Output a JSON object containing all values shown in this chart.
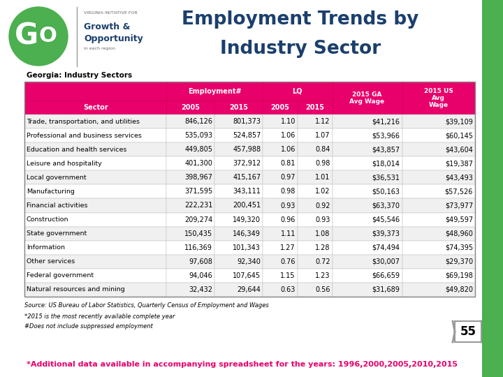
{
  "title_line1": "Employment Trends by",
  "title_line2": "Industry Sector",
  "subtitle": "Georgia: Industry Sectors",
  "rows": [
    [
      "Trade, transportation, and utilities",
      "846,126",
      "801,373",
      "1.10",
      "1.12",
      "$41,216",
      "$39,109"
    ],
    [
      "Professional and business services",
      "535,093",
      "524,857",
      "1.06",
      "1.07",
      "$53,966",
      "$60,145"
    ],
    [
      "Education and health services",
      "449,805",
      "457,988",
      "1.06",
      "0.84",
      "$43,857",
      "$43,604"
    ],
    [
      "Leisure and hospitality",
      "401,300",
      "372,912",
      "0.81",
      "0.98",
      "$18,014",
      "$19,387"
    ],
    [
      "Local government",
      "398,967",
      "415,167",
      "0.97",
      "1.01",
      "$36,531",
      "$43,493"
    ],
    [
      "Manufacturing",
      "371,595",
      "343,111",
      "0.98",
      "1.02",
      "$50,163",
      "$57,526"
    ],
    [
      "Financial activities",
      "222,231",
      "200,451",
      "0.93",
      "0.92",
      "$63,370",
      "$73,977"
    ],
    [
      "Construction",
      "209,274",
      "149,320",
      "0.96",
      "0.93",
      "$45,546",
      "$49,597"
    ],
    [
      "State government",
      "150,435",
      "146,349",
      "1.11",
      "1.08",
      "$39,373",
      "$48,960"
    ],
    [
      "Information",
      "116,369",
      "101,343",
      "1.27",
      "1.28",
      "$74,494",
      "$74,395"
    ],
    [
      "Other services",
      "97,608",
      "92,340",
      "0.76",
      "0.72",
      "$30,007",
      "$29,370"
    ],
    [
      "Federal government",
      "94,046",
      "107,645",
      "1.15",
      "1.23",
      "$66,659",
      "$69,198"
    ],
    [
      "Natural resources and mining",
      "32,432",
      "29,644",
      "0.63",
      "0.56",
      "$31,689",
      "$49,820"
    ]
  ],
  "source_text": "Source: US Bureau of Labor Statistics, Quarterly Census of Employment and Wages",
  "footnote1": "*2015 is the most recently available complete year",
  "footnote2": "#Does not include suppressed employment",
  "bottom_text": "*Additional data available in accompanying spreadsheet for the years: 1996,2000,2005,2010,2015",
  "page_number": "55",
  "header_bg": "#E8006B",
  "header_fg": "#FFFFFF",
  "alt_row": "#F0F0F0",
  "white_row": "#FFFFFF",
  "border_col": "#BBBBBB",
  "title_color": "#1B3F6E",
  "green_color": "#4CAF50",
  "pink_color": "#E8006B",
  "dark_blue": "#1B3F6E"
}
